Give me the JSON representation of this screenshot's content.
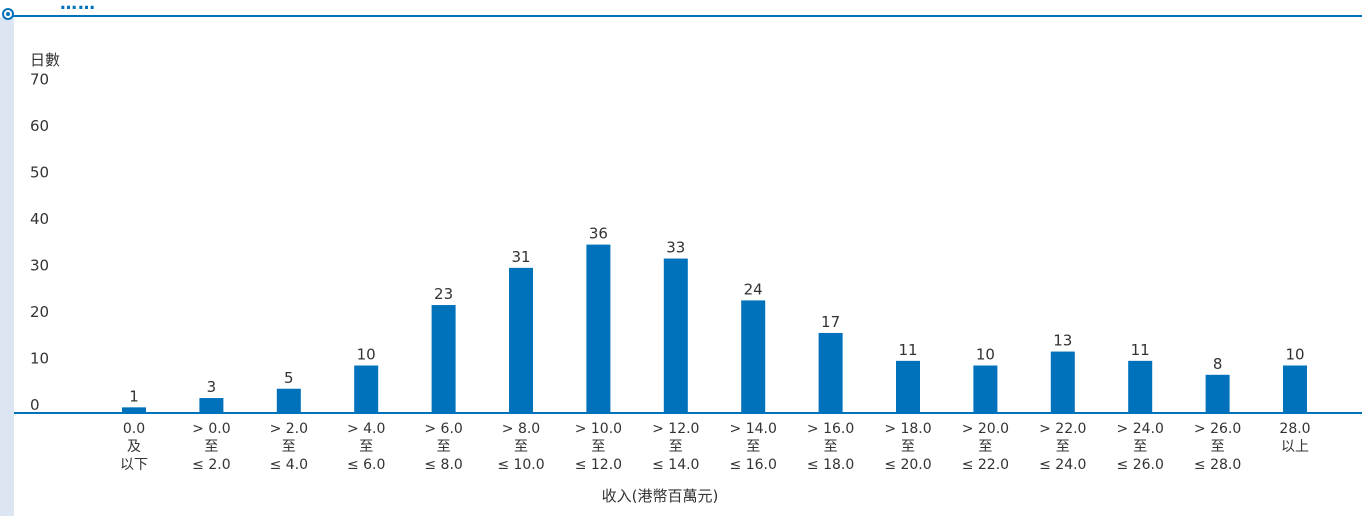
{
  "header": {
    "title": "……"
  },
  "colors": {
    "accent": "#0072bc",
    "bar": "#0072bc",
    "text": "#333333",
    "strip": "#dce6f2"
  },
  "chart_data": {
    "type": "bar",
    "ylabel": "日數",
    "xlabel": "收入(港幣百萬元)",
    "ylim": [
      0,
      70
    ],
    "yticks": [
      0,
      10,
      20,
      30,
      40,
      50,
      60,
      70
    ],
    "grid": false,
    "categories": [
      [
        "0.0",
        "及",
        "以下"
      ],
      [
        "> 0.0",
        "至",
        "≤ 2.0"
      ],
      [
        "> 2.0",
        "至",
        "≤ 4.0"
      ],
      [
        "> 4.0",
        "至",
        "≤ 6.0"
      ],
      [
        "> 6.0",
        "至",
        "≤ 8.0"
      ],
      [
        "> 8.0",
        "至",
        "≤ 10.0"
      ],
      [
        "> 10.0",
        "至",
        "≤ 12.0"
      ],
      [
        "> 12.0",
        "至",
        "≤ 14.0"
      ],
      [
        "> 14.0",
        "至",
        "≤ 16.0"
      ],
      [
        "> 16.0",
        "至",
        "≤ 18.0"
      ],
      [
        "> 18.0",
        "至",
        "≤ 20.0"
      ],
      [
        "> 20.0",
        "至",
        "≤ 22.0"
      ],
      [
        "> 22.0",
        "至",
        "≤ 24.0"
      ],
      [
        "> 24.0",
        "至",
        "≤ 26.0"
      ],
      [
        "> 26.0",
        "至",
        "≤ 28.0"
      ],
      [
        "28.0",
        "以上"
      ]
    ],
    "values": [
      1,
      3,
      5,
      10,
      23,
      31,
      36,
      33,
      24,
      17,
      11,
      10,
      13,
      11,
      8,
      10
    ]
  }
}
